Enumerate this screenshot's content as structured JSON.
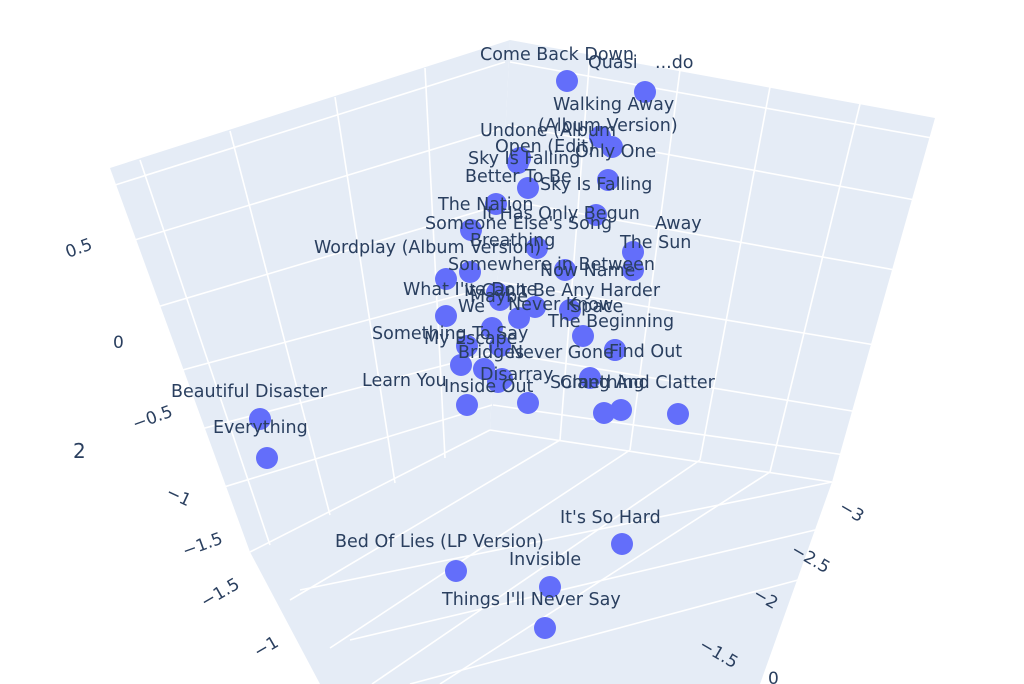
{
  "chart_data": {
    "type": "scatter3d",
    "marker_color": "#636efa",
    "scene_background": "#e5ecf6",
    "grid_color": "#ffffff",
    "text_color": "#2a3f5f",
    "axis_title_visible": "2",
    "tick_labels": {
      "z": [
        "0.5",
        "0",
        "−0.5",
        "−1",
        "−1.5"
      ],
      "x": [
        "−1.5",
        "−1"
      ],
      "y": [
        "−3",
        "−2.5",
        "−2",
        "−1.5",
        "0"
      ]
    },
    "points": [
      {
        "label": "Come Back Down"
      },
      {
        "label": "Quasi"
      },
      {
        "label": "...do"
      },
      {
        "label": "Walking Away"
      },
      {
        "label": "(Album Version)"
      },
      {
        "label": "Undone (Album"
      },
      {
        "label": "Open (Edit)"
      },
      {
        "label": "Only One"
      },
      {
        "label": "Sky Is Falling"
      },
      {
        "label": "Better To Be"
      },
      {
        "label": "Sky Is Falling"
      },
      {
        "label": "The Nation"
      },
      {
        "label": "It Has Only Begun"
      },
      {
        "label": "Someone Else's Song"
      },
      {
        "label": "Away"
      },
      {
        "label": "Wordplay (Album Version)"
      },
      {
        "label": "Breathing"
      },
      {
        "label": "The Sun"
      },
      {
        "label": "Somewhere in Between"
      },
      {
        "label": "Now Name"
      },
      {
        "label": "What I've Done"
      },
      {
        "label": "It Can't Be Any Harder"
      },
      {
        "label": "Maybe"
      },
      {
        "label": "Never Know"
      },
      {
        "label": "We"
      },
      {
        "label": "Space"
      },
      {
        "label": "The Beginning"
      },
      {
        "label": "Something To Say"
      },
      {
        "label": "My Escape"
      },
      {
        "label": "Bridges"
      },
      {
        "label": "Never Gone"
      },
      {
        "label": "Find Out"
      },
      {
        "label": "Learn You"
      },
      {
        "label": "Disarray"
      },
      {
        "label": "Inside Out"
      },
      {
        "label": "Something"
      },
      {
        "label": "Clang And Clatter"
      },
      {
        "label": "Beautiful Disaster"
      },
      {
        "label": "Everything"
      },
      {
        "label": "It's So Hard"
      },
      {
        "label": "Bed Of Lies (LP Version)"
      },
      {
        "label": "Invisible"
      },
      {
        "label": "Things I'll Never Say"
      }
    ]
  }
}
